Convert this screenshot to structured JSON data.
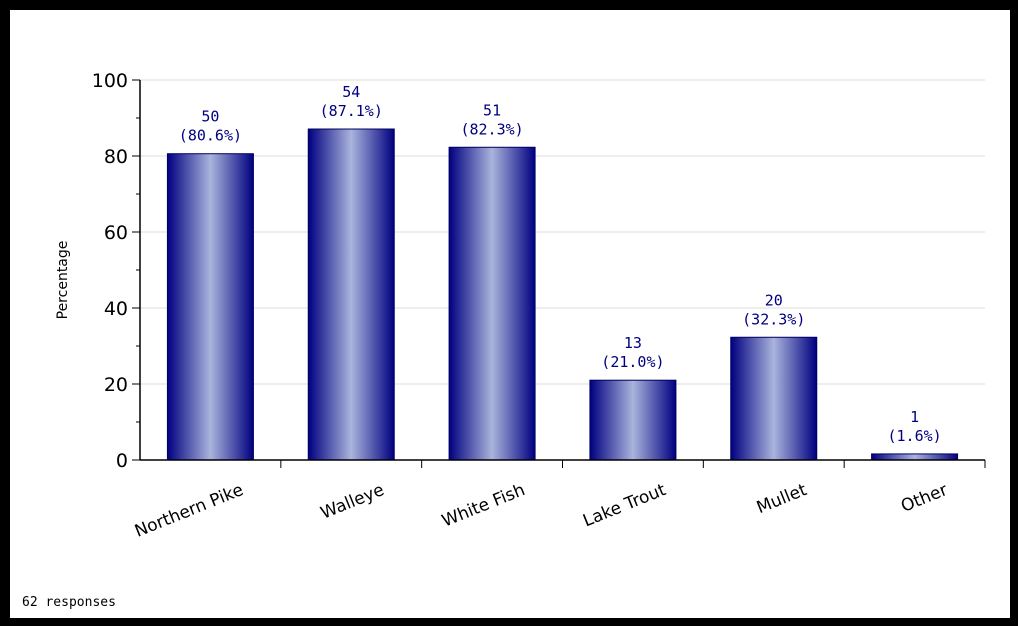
{
  "chart_data": {
    "type": "bar",
    "title": "",
    "xlabel": "",
    "ylabel": "Percentage",
    "ylim": [
      0,
      100
    ],
    "yticks": [
      0,
      20,
      40,
      60,
      80,
      100
    ],
    "grid": true,
    "categories": [
      "Northern Pike",
      "Walleye",
      "White Fish",
      "Lake Trout",
      "Mullet",
      "Other"
    ],
    "values": [
      80.6,
      87.1,
      82.3,
      21.0,
      32.3,
      1.6
    ],
    "counts": [
      50,
      54,
      51,
      13,
      20,
      1
    ],
    "percent_labels": [
      "(80.6%)",
      "(87.1%)",
      "(82.3%)",
      "(21.0%)",
      "(32.3%)",
      "(1.6%)"
    ],
    "bar_color": "#000080",
    "bar_highlight_color": "#aab4dc",
    "label_color": "#000080"
  },
  "footer": {
    "responses": "62 responses"
  }
}
